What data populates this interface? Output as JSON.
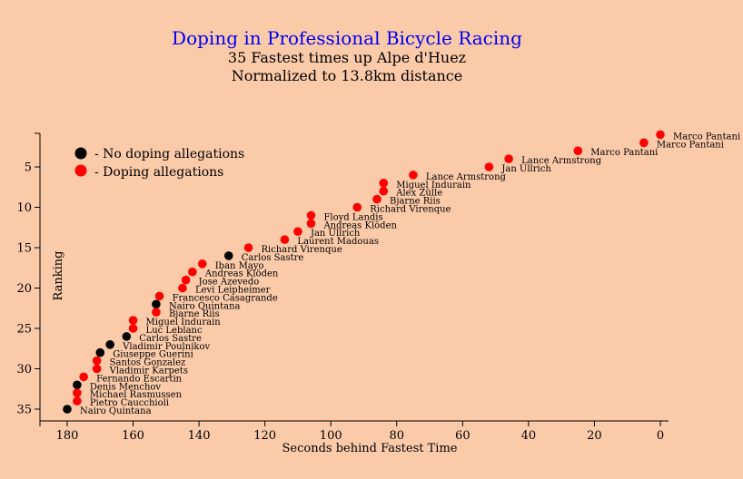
{
  "chart_data": {
    "type": "scatter",
    "title": "Doping in Professional Bicycle Racing",
    "subtitle_lines": [
      "35 Fastest times up Alpe d'Huez",
      "Normalized to 13.8km distance"
    ],
    "xlabel": "Seconds behind Fastest Time",
    "ylabel": "Ranking",
    "xlim": [
      185,
      0
    ],
    "ylim": [
      1,
      36
    ],
    "x_ticks": [
      180,
      160,
      140,
      120,
      100,
      80,
      60,
      40,
      20,
      0
    ],
    "y_ticks": [
      5,
      10,
      15,
      20,
      25,
      30,
      35
    ],
    "legend": {
      "position": "top-left",
      "entries": [
        {
          "label": "- No doping allegations",
          "color": "#000000"
        },
        {
          "label": "- Doping allegations",
          "color": "#ff0000"
        }
      ]
    },
    "colors": {
      "no_doping": "#000000",
      "doping": "#ff0000"
    },
    "points": [
      {
        "rank": 1,
        "seconds": 0,
        "name": "Marco Pantani",
        "doping": true
      },
      {
        "rank": 2,
        "seconds": 5,
        "name": "Marco Pantani",
        "doping": true
      },
      {
        "rank": 3,
        "seconds": 25,
        "name": "Marco Pantani",
        "doping": true
      },
      {
        "rank": 4,
        "seconds": 46,
        "name": "Lance Armstrong",
        "doping": true
      },
      {
        "rank": 5,
        "seconds": 52,
        "name": "Jan Ullrich",
        "doping": true
      },
      {
        "rank": 6,
        "seconds": 75,
        "name": "Lance Armstrong",
        "doping": true
      },
      {
        "rank": 7,
        "seconds": 84,
        "name": "Miguel Indurain",
        "doping": true
      },
      {
        "rank": 8,
        "seconds": 84,
        "name": "Alex Zülle",
        "doping": true
      },
      {
        "rank": 9,
        "seconds": 86,
        "name": "Bjarne Riis",
        "doping": true
      },
      {
        "rank": 10,
        "seconds": 92,
        "name": "Richard Virenque",
        "doping": true
      },
      {
        "rank": 11,
        "seconds": 106,
        "name": "Floyd Landis",
        "doping": true
      },
      {
        "rank": 12,
        "seconds": 106,
        "name": "Andreas Klöden",
        "doping": true
      },
      {
        "rank": 13,
        "seconds": 110,
        "name": "Jan Ullrich",
        "doping": true
      },
      {
        "rank": 14,
        "seconds": 114,
        "name": "Laurent Madouas",
        "doping": true
      },
      {
        "rank": 15,
        "seconds": 125,
        "name": "Richard Virenque",
        "doping": true
      },
      {
        "rank": 16,
        "seconds": 131,
        "name": "Carlos Sastre",
        "doping": false
      },
      {
        "rank": 17,
        "seconds": 139,
        "name": "Iban Mayo",
        "doping": true
      },
      {
        "rank": 18,
        "seconds": 142,
        "name": "Andreas Klöden",
        "doping": true
      },
      {
        "rank": 19,
        "seconds": 144,
        "name": "Jose Azevedo",
        "doping": true
      },
      {
        "rank": 20,
        "seconds": 145,
        "name": "Levi Leipheimer",
        "doping": true
      },
      {
        "rank": 21,
        "seconds": 152,
        "name": "Francesco Casagrande",
        "doping": true
      },
      {
        "rank": 22,
        "seconds": 153,
        "name": "Nairo Quintana",
        "doping": false
      },
      {
        "rank": 23,
        "seconds": 153,
        "name": "Bjarne Riis",
        "doping": true
      },
      {
        "rank": 24,
        "seconds": 160,
        "name": "Miguel Indurain",
        "doping": true
      },
      {
        "rank": 25,
        "seconds": 160,
        "name": "Luc Leblanc",
        "doping": true
      },
      {
        "rank": 26,
        "seconds": 162,
        "name": "Carlos Sastre",
        "doping": false
      },
      {
        "rank": 27,
        "seconds": 167,
        "name": "Vladimir Poulnikov",
        "doping": false
      },
      {
        "rank": 28,
        "seconds": 170,
        "name": "Giuseppe Guerini",
        "doping": false
      },
      {
        "rank": 29,
        "seconds": 171,
        "name": "Santos Gonzalez",
        "doping": true
      },
      {
        "rank": 30,
        "seconds": 171,
        "name": "Vladimir Karpets",
        "doping": true
      },
      {
        "rank": 31,
        "seconds": 175,
        "name": "Fernando Escartin",
        "doping": true
      },
      {
        "rank": 32,
        "seconds": 177,
        "name": "Denis Menchov",
        "doping": false
      },
      {
        "rank": 33,
        "seconds": 177,
        "name": "Michael Rasmussen",
        "doping": true
      },
      {
        "rank": 34,
        "seconds": 177,
        "name": "Pietro Caucchioli",
        "doping": true
      },
      {
        "rank": 35,
        "seconds": 180,
        "name": "Nairo Quintana",
        "doping": false
      }
    ]
  }
}
